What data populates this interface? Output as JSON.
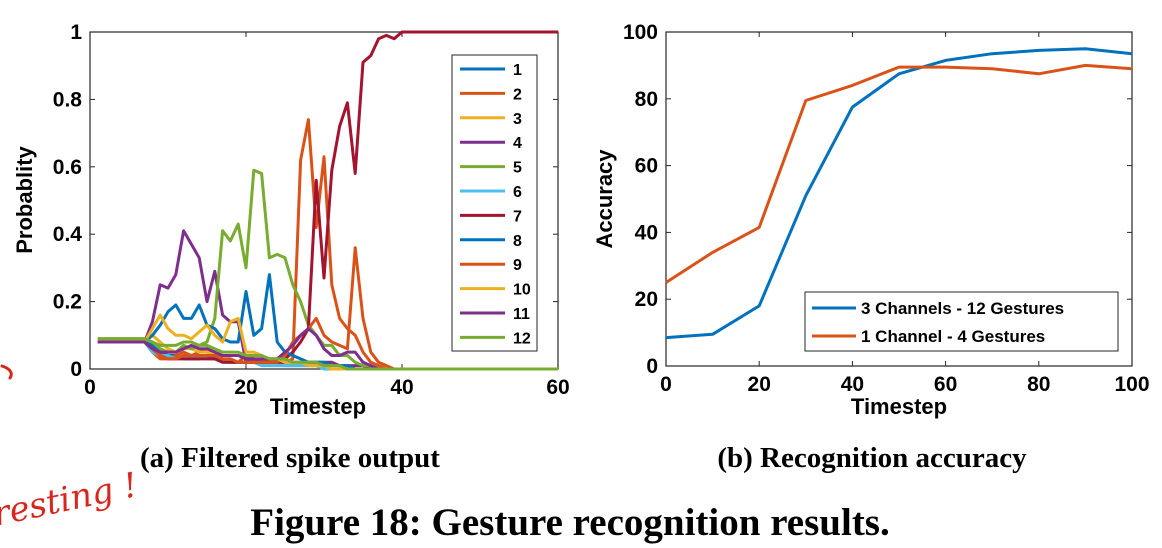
{
  "chart_data": [
    {
      "type": "line",
      "xlabel": "Timestep",
      "ylabel": "Probablity",
      "xlim": [
        0,
        60
      ],
      "ylim": [
        0,
        1
      ],
      "xticks": [
        "0",
        "20",
        "40",
        "60"
      ],
      "yticks": [
        "0",
        "0.2",
        "0.4",
        "0.6",
        "0.8",
        "1"
      ],
      "legend_position": "top-right",
      "x": [
        1,
        2,
        3,
        4,
        5,
        6,
        7,
        8,
        9,
        10,
        11,
        12,
        13,
        14,
        15,
        16,
        17,
        18,
        19,
        20,
        21,
        22,
        23,
        24,
        25,
        26,
        27,
        28,
        29,
        30,
        31,
        32,
        33,
        34,
        35,
        36,
        37,
        38,
        39,
        40,
        42,
        45,
        50,
        55,
        60
      ],
      "series": [
        {
          "name": "1",
          "color": "#0072BD",
          "values": [
            0.08,
            0.08,
            0.08,
            0.08,
            0.08,
            0.08,
            0.08,
            0.07,
            0.05,
            0.04,
            0.04,
            0.03,
            0.03,
            0.03,
            0.04,
            0.03,
            0.03,
            0.02,
            0.02,
            0.02,
            0.02,
            0.02,
            0.02,
            0.02,
            0.01,
            0.01,
            0.01,
            0.01,
            0.01,
            0,
            0,
            0,
            0,
            0,
            0,
            0,
            0,
            0,
            0,
            0,
            0,
            0,
            0,
            0,
            0
          ]
        },
        {
          "name": "2",
          "color": "#D95319",
          "values": [
            0.08,
            0.08,
            0.08,
            0.08,
            0.08,
            0.08,
            0.08,
            0.05,
            0.03,
            0.03,
            0.04,
            0.05,
            0.04,
            0.05,
            0.06,
            0.05,
            0.03,
            0.02,
            0.02,
            0.04,
            0.03,
            0.03,
            0.02,
            0.02,
            0.02,
            0.03,
            0.62,
            0.74,
            0.42,
            0.63,
            0.25,
            0.15,
            0.12,
            0.1,
            0.05,
            0.02,
            0.01,
            0,
            0,
            0,
            0,
            0,
            0,
            0,
            0
          ]
        },
        {
          "name": "3",
          "color": "#EDB120",
          "values": [
            0.09,
            0.09,
            0.09,
            0.09,
            0.09,
            0.09,
            0.09,
            0.1,
            0.08,
            0.06,
            0.05,
            0.06,
            0.06,
            0.05,
            0.05,
            0.04,
            0.03,
            0.03,
            0.02,
            0.02,
            0.02,
            0.02,
            0.01,
            0.01,
            0.01,
            0.01,
            0.01,
            0.01,
            0.01,
            0,
            0,
            0,
            0,
            0,
            0,
            0,
            0,
            0,
            0,
            0,
            0,
            0,
            0,
            0,
            0
          ]
        },
        {
          "name": "4",
          "color": "#7E2F8E",
          "values": [
            0.08,
            0.08,
            0.08,
            0.08,
            0.08,
            0.08,
            0.08,
            0.14,
            0.25,
            0.24,
            0.28,
            0.41,
            0.37,
            0.33,
            0.2,
            0.29,
            0.16,
            0.14,
            0.14,
            0.02,
            0.03,
            0.02,
            0.02,
            0.02,
            0.02,
            0.02,
            0.02,
            0.02,
            0.02,
            0.02,
            0.02,
            0.01,
            0.01,
            0.01,
            0.01,
            0,
            0,
            0,
            0,
            0,
            0,
            0,
            0,
            0,
            0
          ]
        },
        {
          "name": "5",
          "color": "#77AC30",
          "values": [
            0.09,
            0.09,
            0.09,
            0.09,
            0.09,
            0.09,
            0.09,
            0.08,
            0.06,
            0.05,
            0.05,
            0.07,
            0.06,
            0.07,
            0.08,
            0.15,
            0.41,
            0.38,
            0.43,
            0.3,
            0.59,
            0.58,
            0.33,
            0.34,
            0.33,
            0.25,
            0.2,
            0.13,
            0.1,
            0.07,
            0.07,
            0.04,
            0.04,
            0.02,
            0.01,
            0.01,
            0,
            0,
            0,
            0,
            0,
            0,
            0,
            0,
            0
          ]
        },
        {
          "name": "6",
          "color": "#4DBEEE",
          "values": [
            0.08,
            0.08,
            0.08,
            0.08,
            0.08,
            0.08,
            0.08,
            0.05,
            0.04,
            0.04,
            0.03,
            0.04,
            0.03,
            0.04,
            0.03,
            0.03,
            0.02,
            0.02,
            0.02,
            0.02,
            0.02,
            0.01,
            0.01,
            0.01,
            0.01,
            0.01,
            0.01,
            0.01,
            0.01,
            0,
            0,
            0,
            0,
            0,
            0,
            0,
            0,
            0,
            0,
            0,
            0,
            0,
            0,
            0,
            0
          ]
        },
        {
          "name": "7",
          "color": "#A2142F",
          "values": [
            0.08,
            0.08,
            0.08,
            0.08,
            0.08,
            0.08,
            0.08,
            0.06,
            0.04,
            0.03,
            0.03,
            0.03,
            0.03,
            0.03,
            0.03,
            0.03,
            0.02,
            0.02,
            0.02,
            0.02,
            0.02,
            0.02,
            0.02,
            0.02,
            0.03,
            0.05,
            0.08,
            0.12,
            0.56,
            0.27,
            0.59,
            0.72,
            0.79,
            0.58,
            0.91,
            0.93,
            0.98,
            0.99,
            0.98,
            1.0,
            1.0,
            1.0,
            1.0,
            1.0,
            1.0
          ]
        },
        {
          "name": "8",
          "color": "#0072BD",
          "values": [
            0.08,
            0.08,
            0.08,
            0.08,
            0.08,
            0.08,
            0.08,
            0.1,
            0.13,
            0.17,
            0.19,
            0.15,
            0.15,
            0.19,
            0.13,
            0.12,
            0.09,
            0.08,
            0.08,
            0.23,
            0.1,
            0.12,
            0.28,
            0.08,
            0.05,
            0.04,
            0.03,
            0.02,
            0.02,
            0.02,
            0.01,
            0.01,
            0.01,
            0,
            0,
            0,
            0,
            0,
            0,
            0,
            0,
            0,
            0,
            0,
            0
          ]
        },
        {
          "name": "9",
          "color": "#D95319",
          "values": [
            0.08,
            0.08,
            0.08,
            0.08,
            0.08,
            0.08,
            0.08,
            0.06,
            0.04,
            0.03,
            0.03,
            0.04,
            0.04,
            0.04,
            0.04,
            0.04,
            0.03,
            0.03,
            0.02,
            0.02,
            0.02,
            0.02,
            0.02,
            0.02,
            0.04,
            0.08,
            0.1,
            0.12,
            0.15,
            0.1,
            0.08,
            0.07,
            0.06,
            0.36,
            0.15,
            0.05,
            0.02,
            0.01,
            0,
            0,
            0,
            0,
            0,
            0,
            0
          ]
        },
        {
          "name": "10",
          "color": "#EDB120",
          "values": [
            0.08,
            0.08,
            0.08,
            0.08,
            0.08,
            0.08,
            0.08,
            0.12,
            0.16,
            0.12,
            0.1,
            0.1,
            0.09,
            0.11,
            0.13,
            0.1,
            0.08,
            0.14,
            0.15,
            0.05,
            0.05,
            0.04,
            0.03,
            0.03,
            0.02,
            0.02,
            0.02,
            0.01,
            0.01,
            0.01,
            0,
            0,
            0,
            0,
            0,
            0,
            0,
            0,
            0,
            0,
            0,
            0,
            0,
            0,
            0
          ]
        },
        {
          "name": "11",
          "color": "#7E2F8E",
          "values": [
            0.08,
            0.08,
            0.08,
            0.08,
            0.08,
            0.08,
            0.08,
            0.06,
            0.05,
            0.05,
            0.05,
            0.06,
            0.07,
            0.06,
            0.06,
            0.05,
            0.04,
            0.04,
            0.04,
            0.03,
            0.03,
            0.03,
            0.03,
            0.03,
            0.05,
            0.07,
            0.1,
            0.12,
            0.1,
            0.06,
            0.04,
            0.04,
            0.05,
            0.05,
            0.02,
            0.01,
            0,
            0,
            0,
            0,
            0,
            0,
            0,
            0,
            0
          ]
        },
        {
          "name": "12",
          "color": "#77AC30",
          "values": [
            0.09,
            0.09,
            0.09,
            0.09,
            0.09,
            0.09,
            0.09,
            0.08,
            0.07,
            0.07,
            0.07,
            0.08,
            0.08,
            0.07,
            0.07,
            0.06,
            0.05,
            0.05,
            0.05,
            0.04,
            0.04,
            0.04,
            0.03,
            0.03,
            0.03,
            0.02,
            0.02,
            0.02,
            0.02,
            0.01,
            0.01,
            0.01,
            0,
            0,
            0,
            0,
            0,
            0,
            0,
            0,
            0,
            0,
            0,
            0,
            0
          ]
        }
      ],
      "caption": "(a) Filtered spike output"
    },
    {
      "type": "line",
      "xlabel": "Timestep",
      "ylabel": "Accuracy",
      "xlim": [
        0,
        100
      ],
      "ylim": [
        0,
        100
      ],
      "xticks": [
        "0",
        "20",
        "40",
        "60",
        "80",
        "100"
      ],
      "yticks": [
        "0",
        "20",
        "40",
        "60",
        "80",
        "100"
      ],
      "legend_position": "bottom-right",
      "x": [
        0,
        10,
        20,
        30,
        40,
        50,
        60,
        70,
        80,
        90,
        100
      ],
      "series": [
        {
          "name": "3 Channels - 12 Gestures",
          "color": "#0072BD",
          "values": [
            8.5,
            9.5,
            18,
            51,
            77.5,
            87.5,
            91.5,
            93.5,
            94.5,
            95,
            93.5
          ]
        },
        {
          "name": "1 Channel - 4 Gestures",
          "color": "#D95319",
          "values": [
            25,
            34,
            41.5,
            79.5,
            84,
            89.5,
            89.5,
            89,
            87.5,
            90,
            89
          ]
        }
      ],
      "caption": "(b) Recognition accuracy"
    }
  ],
  "figure_caption": "Figure 18: Gesture recognition results.",
  "handwriting": "resting !"
}
